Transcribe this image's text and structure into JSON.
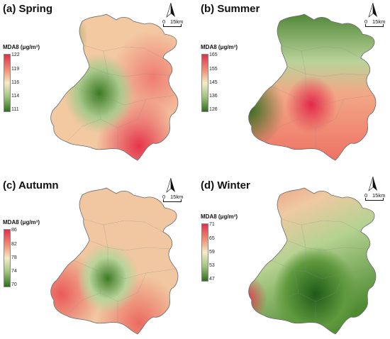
{
  "legend": {
    "title": "MDA8 (μg/m³)"
  },
  "scale": {
    "zero": "0",
    "distance": "15km"
  },
  "north_label": "N",
  "panels": [
    {
      "title": "(a)  Spring",
      "ticks": [
        "122",
        "119",
        "116",
        "114",
        "111"
      ],
      "colors": {
        "high": "#e0304a",
        "mid": "#f3e4be",
        "low": "#2f6e1c"
      }
    },
    {
      "title": "(b)  Summer",
      "ticks": [
        "165",
        "155",
        "145",
        "136",
        "126"
      ],
      "colors": {
        "high": "#e0304a",
        "mid": "#f3e4be",
        "low": "#2f6e1c"
      }
    },
    {
      "title": "(c)  Autumn",
      "ticks": [
        "86",
        "82",
        "78",
        "74",
        "70"
      ],
      "colors": {
        "high": "#e0304a",
        "mid": "#f3e4be",
        "low": "#2f6e1c"
      }
    },
    {
      "title": "(d)  Winter",
      "ticks": [
        "71",
        "65",
        "59",
        "53",
        "47"
      ],
      "colors": {
        "high": "#e0304a",
        "mid": "#f3e4be",
        "low": "#2f6e1c"
      }
    }
  ]
}
